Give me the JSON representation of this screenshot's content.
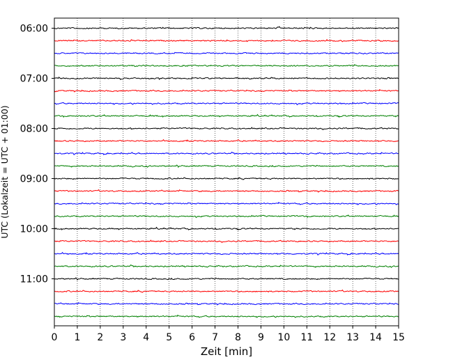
{
  "chart_data": {
    "type": "line",
    "title": "",
    "xlabel": "Zeit  [min]",
    "ylabel": "UTC (Lokalzeit = UTC + 01:00)",
    "xlim": [
      0,
      15
    ],
    "x_ticks": [
      "0",
      "1",
      "2",
      "3",
      "4",
      "5",
      "6",
      "7",
      "8",
      "9",
      "10",
      "11",
      "12",
      "13",
      "14",
      "15"
    ],
    "y_tick_labels": [
      "06:00",
      "07:00",
      "08:00",
      "09:00",
      "10:00",
      "11:00"
    ],
    "grid": "vertical dotted lines at each minute",
    "trace_interval_minutes": 15,
    "trace_start_time": "06:00",
    "trace_count": 24,
    "trace_colors": [
      "#000000",
      "#ff0000",
      "#0000ff",
      "#008000"
    ]
  }
}
